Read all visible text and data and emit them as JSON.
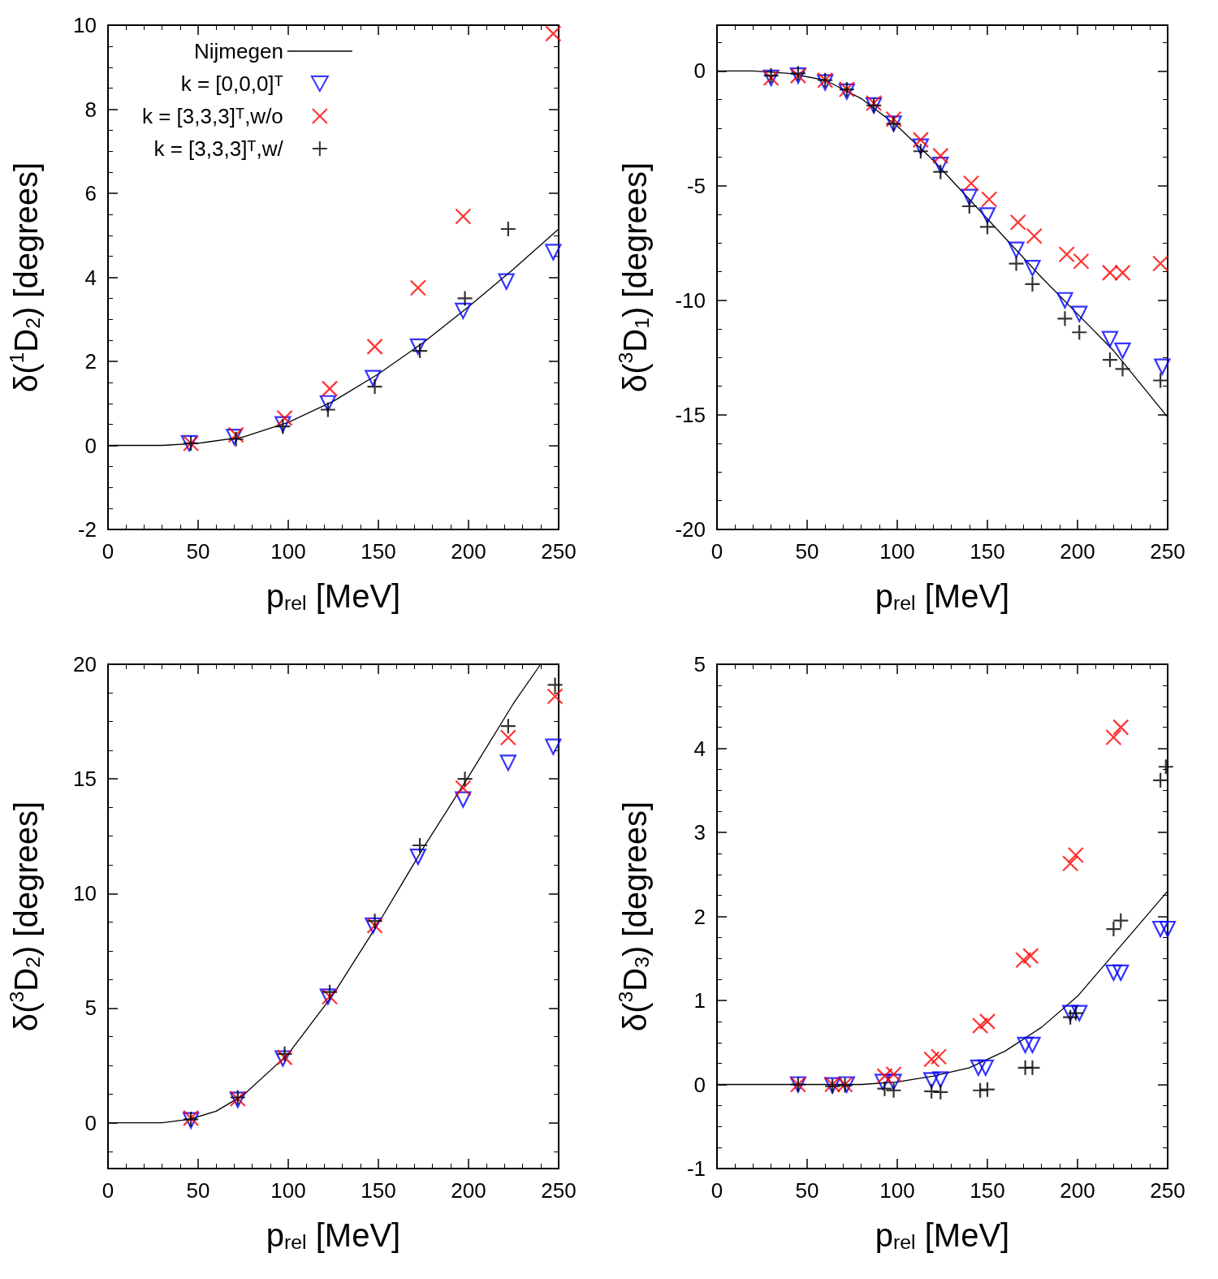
{
  "chart_data": [
    {
      "type": "scatter",
      "xlabel": "p$_{rel}$ [MeV]",
      "ylabel": "δ($^{1}$D$_{2}$) [degrees]",
      "xlim": [
        0,
        250
      ],
      "xticks": [
        0,
        50,
        100,
        150,
        200,
        250
      ],
      "ylim": [
        -2,
        10
      ],
      "yticks": [
        -2,
        0,
        2,
        4,
        6,
        8,
        10
      ],
      "legend": "top left",
      "grid": false,
      "series": [
        {
          "name": "Nijmegen",
          "type": "line",
          "color": "#000000",
          "marker": "none",
          "line_style": "solid",
          "x": [
            0,
            30,
            50,
            75,
            100,
            125,
            150,
            175,
            200,
            225,
            250
          ],
          "values": [
            0,
            0,
            0.05,
            0.2,
            0.55,
            1.05,
            1.7,
            2.45,
            3.3,
            4.2,
            5.15
          ]
        },
        {
          "name": "k = [0,0,0]ᵀ",
          "color": "#0000ff",
          "marker": "triangle",
          "x": [
            45,
            70,
            97,
            122,
            147,
            172,
            197,
            221,
            247
          ],
          "values": [
            0.05,
            0.2,
            0.5,
            1.0,
            1.6,
            2.35,
            3.2,
            3.9,
            4.6
          ]
        },
        {
          "name": "k = [3,3,3]ᵀ,w/o",
          "color": "#ff0000",
          "marker": "cross",
          "x": [
            46,
            71,
            98,
            123,
            148,
            172,
            197,
            247
          ],
          "values": [
            0.05,
            0.25,
            0.65,
            1.35,
            2.35,
            3.75,
            5.45,
            9.8
          ]
        },
        {
          "name": "k = [3,3,3]ᵀ,w/",
          "color": "#000000",
          "marker": "plus",
          "x": [
            46,
            71,
            97,
            122,
            148,
            173,
            198,
            222
          ],
          "values": [
            0.05,
            0.15,
            0.45,
            0.85,
            1.4,
            2.25,
            3.5,
            5.15
          ]
        }
      ]
    },
    {
      "type": "scatter",
      "xlabel": "p$_{rel}$ [MeV]",
      "ylabel": "δ($^{3}$D$_{1}$) [degrees]",
      "xlim": [
        0,
        250
      ],
      "xticks": [
        0,
        50,
        100,
        150,
        200,
        250
      ],
      "ylim": [
        -20,
        2
      ],
      "yticks": [
        -20,
        -15,
        -10,
        -5,
        0
      ],
      "grid": false,
      "series": [
        {
          "type": "line",
          "color": "#000000",
          "marker": "none",
          "line_style": "solid",
          "x": [
            0,
            20,
            40,
            60,
            80,
            100,
            120,
            140,
            160,
            180,
            200,
            220,
            250
          ],
          "values": [
            0,
            0,
            -0.1,
            -0.4,
            -1.2,
            -2.4,
            -3.9,
            -5.6,
            -7.3,
            -9.0,
            -10.6,
            -12.2,
            -15.1
          ]
        },
        {
          "color": "#0000ff",
          "marker": "triangle",
          "x": [
            30,
            45,
            60,
            72,
            87,
            98,
            113,
            124,
            140,
            150,
            166,
            175,
            193,
            201,
            218,
            225,
            247
          ],
          "values": [
            -0.3,
            -0.2,
            -0.5,
            -0.9,
            -1.5,
            -2.3,
            -3.3,
            -4.1,
            -5.5,
            -6.3,
            -7.8,
            -8.6,
            -10.0,
            -10.6,
            -11.7,
            -12.2,
            -12.9
          ]
        },
        {
          "color": "#ff0000",
          "marker": "cross",
          "x": [
            30,
            45,
            60,
            72,
            87,
            98,
            113,
            124,
            141,
            151,
            167,
            176,
            194,
            202,
            218,
            225,
            246
          ],
          "values": [
            -0.3,
            -0.2,
            -0.4,
            -0.8,
            -1.4,
            -2.1,
            -3.0,
            -3.7,
            -4.9,
            -5.6,
            -6.6,
            -7.2,
            -8.0,
            -8.3,
            -8.8,
            -8.8,
            -8.4
          ]
        },
        {
          "color": "#000000",
          "marker": "plus",
          "x": [
            30,
            45,
            60,
            72,
            87,
            98,
            113,
            124,
            140,
            150,
            166,
            175,
            193,
            201,
            218,
            225,
            246
          ],
          "values": [
            -0.2,
            -0.1,
            -0.4,
            -0.8,
            -1.5,
            -2.3,
            -3.5,
            -4.4,
            -5.9,
            -6.8,
            -8.4,
            -9.3,
            -10.8,
            -11.4,
            -12.6,
            -13.0,
            -13.5
          ]
        }
      ]
    },
    {
      "type": "scatter",
      "xlabel": "p$_{rel}$ [MeV]",
      "ylabel": "δ($^{3}$D$_{2}$) [degrees]",
      "xlim": [
        0,
        250
      ],
      "xticks": [
        0,
        50,
        100,
        150,
        200,
        250
      ],
      "ylim": [
        -2,
        20
      ],
      "yticks": [
        0,
        5,
        10,
        15,
        20
      ],
      "grid": false,
      "series": [
        {
          "type": "line",
          "color": "#000000",
          "marker": "none",
          "line_style": "solid",
          "x": [
            0,
            30,
            45,
            60,
            75,
            100,
            125,
            150,
            175,
            200,
            225,
            240
          ],
          "values": [
            0,
            0,
            0.15,
            0.5,
            1.2,
            3.0,
            5.6,
            8.7,
            12.0,
            15.1,
            18.3,
            20
          ]
        },
        {
          "color": "#0000ff",
          "marker": "triangle",
          "x": [
            46,
            72,
            97,
            122,
            147,
            172,
            197,
            222,
            247
          ],
          "values": [
            0.1,
            1.0,
            2.8,
            5.5,
            8.6,
            11.6,
            14.1,
            15.7,
            16.4
          ]
        },
        {
          "color": "#ff0000",
          "marker": "cross",
          "x": [
            46,
            72,
            98,
            123,
            148,
            197,
            222,
            248
          ],
          "values": [
            0.2,
            1.05,
            2.85,
            5.5,
            8.6,
            14.6,
            16.8,
            18.6
          ]
        },
        {
          "color": "#000000",
          "marker": "plus",
          "x": [
            46,
            72,
            98,
            123,
            148,
            173,
            198,
            222,
            248
          ],
          "values": [
            0.15,
            1.1,
            3.0,
            5.7,
            8.8,
            12.1,
            15.0,
            17.3,
            19.1
          ]
        }
      ]
    },
    {
      "type": "scatter",
      "xlabel": "p$_{rel}$ [MeV]",
      "ylabel": "δ($^{3}$D$_{3}$) [degrees]",
      "xlim": [
        0,
        250
      ],
      "xticks": [
        0,
        50,
        100,
        150,
        200,
        250
      ],
      "ylim": [
        -1,
        5
      ],
      "yticks": [
        -1,
        0,
        1,
        2,
        3,
        4,
        5
      ],
      "grid": false,
      "series": [
        {
          "type": "line",
          "color": "#000000",
          "marker": "none",
          "line_style": "solid",
          "x": [
            0,
            80,
            100,
            120,
            140,
            160,
            180,
            200,
            220,
            250
          ],
          "values": [
            0,
            0,
            0.03,
            0.1,
            0.2,
            0.4,
            0.68,
            1.05,
            1.55,
            2.3
          ]
        },
        {
          "color": "#0000ff",
          "marker": "triangle",
          "x": [
            45,
            64,
            72,
            92,
            98,
            119,
            124,
            145,
            149,
            171,
            175,
            196,
            201,
            220,
            224,
            246,
            250
          ],
          "values": [
            0.0,
            -0.01,
            0.0,
            0.03,
            0.03,
            0.05,
            0.06,
            0.2,
            0.2,
            0.47,
            0.47,
            0.85,
            0.85,
            1.33,
            1.33,
            1.85,
            1.85
          ]
        },
        {
          "color": "#ff0000",
          "marker": "cross",
          "x": [
            45,
            64,
            71,
            93,
            98,
            119,
            123,
            146,
            150,
            170,
            174,
            196,
            199,
            220,
            224
          ],
          "values": [
            0.0,
            0.0,
            0.0,
            0.1,
            0.12,
            0.3,
            0.33,
            0.7,
            0.75,
            1.48,
            1.53,
            2.63,
            2.73,
            4.13,
            4.25
          ]
        },
        {
          "color": "#000000",
          "marker": "plus",
          "x": [
            45,
            64,
            71,
            93,
            98,
            119,
            124,
            146,
            150,
            171,
            175,
            196,
            199,
            220,
            224,
            246,
            249
          ],
          "values": [
            0.0,
            -0.02,
            -0.01,
            -0.05,
            -0.07,
            -0.08,
            -0.09,
            -0.07,
            -0.06,
            0.2,
            0.2,
            0.8,
            0.85,
            1.85,
            1.95,
            3.62,
            3.78
          ]
        }
      ]
    }
  ]
}
